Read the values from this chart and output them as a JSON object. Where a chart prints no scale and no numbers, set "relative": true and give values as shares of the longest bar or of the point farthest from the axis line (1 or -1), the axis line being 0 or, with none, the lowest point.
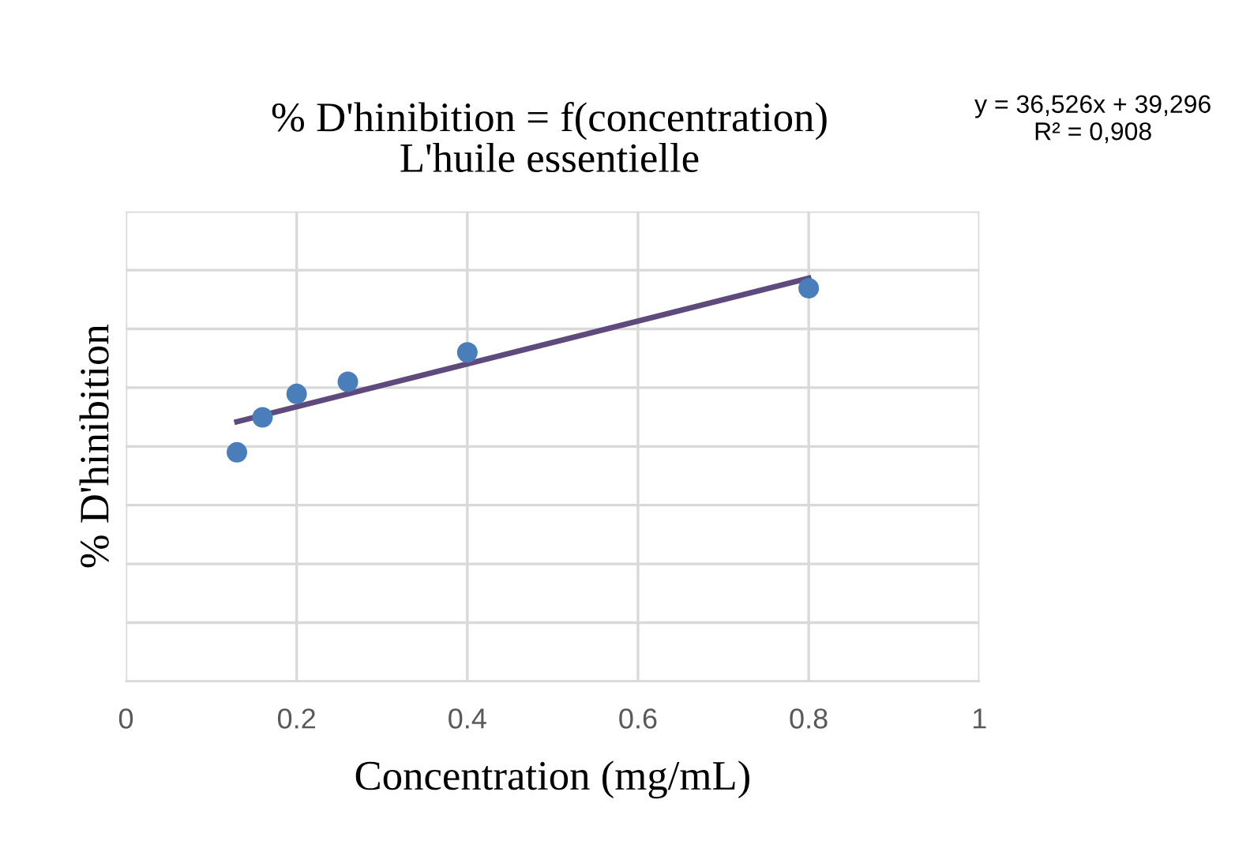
{
  "chart_data": {
    "type": "scatter",
    "title": "% D'hinibition = f(concentration)\nL'huile essentielle",
    "xlabel": "Concentration (mg/mL)",
    "ylabel": "% D'hinibition",
    "relative": true,
    "xlim": [
      0,
      1
    ],
    "xticks": [
      0,
      0.2,
      0.4,
      0.6,
      0.8,
      1
    ],
    "tick_labels": "x",
    "grid": true,
    "marker": "circle",
    "annotations": [
      "y = 36,526x + 39,296\nR² = 0,908"
    ],
    "series": [
      {
        "color": "#4a7ebb",
        "x": [
          0.13,
          0.16,
          0.2,
          0.26,
          0.4,
          0.8
        ],
        "values": [
          0.568,
          0.655,
          0.713,
          0.743,
          0.816,
          0.975
        ]
      },
      {
        "type": "line",
        "color": "#5e4a7d",
        "x": [
          0.13,
          0.8
        ],
        "values": [
          0.644,
          1.0
        ],
        "marker": "none",
        "line_style": "solid"
      }
    ]
  }
}
